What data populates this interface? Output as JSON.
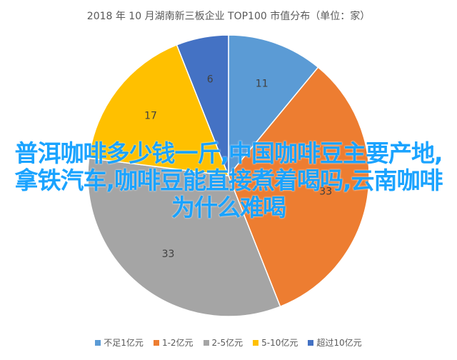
{
  "title": "2018 年 10 月湖南新三板企业 TOP100 市值分布（单位：家）",
  "overlay_text": "普洱咖啡多少钱一斤,中国咖啡豆主要产地,拿铁汽车,咖啡豆能直接煮着喝吗,云南咖啡为什么难喝",
  "chart_data": {
    "type": "pie",
    "title": "2018 年 10 月湖南新三板企业 TOP100 市值分布（单位：家）",
    "categories": [
      "不足1亿元",
      "1-2亿元",
      "2-5亿元",
      "5-10亿元",
      "超过10亿元"
    ],
    "values": [
      11,
      33,
      33,
      17,
      6
    ],
    "colors": [
      "#5B9BD5",
      "#ED7D31",
      "#A5A5A5",
      "#FFC000",
      "#4472C4"
    ],
    "legend_position": "bottom"
  }
}
